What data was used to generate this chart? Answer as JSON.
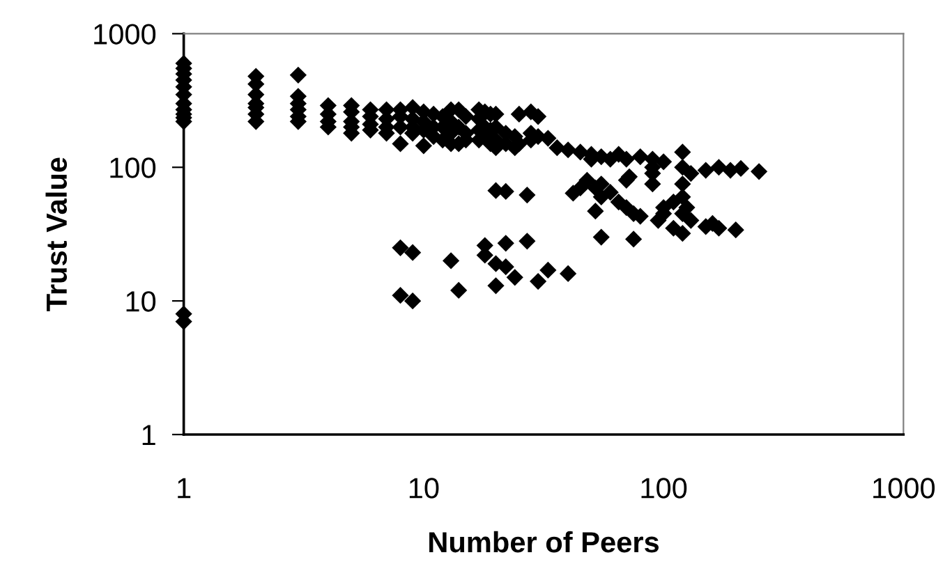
{
  "chart_data": {
    "type": "scatter",
    "xlabel": "Number of Peers",
    "ylabel": "Trust Value",
    "log": "xy",
    "xlim": [
      1,
      1000
    ],
    "ylim": [
      1,
      1000
    ],
    "xticks": [
      1,
      10,
      100,
      1000
    ],
    "yticks": [
      1,
      10,
      100,
      1000
    ],
    "grid": false,
    "marker": "diamond",
    "series": [
      {
        "color": "#000000",
        "x": [
          1,
          1,
          1,
          1,
          1,
          1,
          1,
          1,
          1,
          1,
          1,
          1,
          1,
          2,
          2,
          2,
          2,
          2,
          2,
          2,
          3,
          3,
          3,
          3,
          3,
          3,
          4,
          4,
          4,
          4,
          5,
          5,
          5,
          5,
          5,
          6,
          6,
          6,
          6,
          7,
          7,
          7,
          7,
          8,
          8,
          8,
          8,
          9,
          9,
          9,
          9,
          10,
          10,
          10,
          10,
          11,
          11,
          11,
          12,
          12,
          12,
          13,
          13,
          13,
          13,
          14,
          14,
          14,
          15,
          15,
          15,
          17,
          17,
          17,
          17,
          18,
          18,
          18,
          19,
          19,
          19,
          20,
          20,
          20,
          20,
          22,
          22,
          24,
          24,
          25,
          25,
          28,
          28,
          28,
          30,
          30,
          33,
          36,
          40,
          45,
          50,
          50,
          55,
          60,
          65,
          70,
          80,
          90,
          90,
          100,
          120,
          120,
          130,
          150,
          170,
          190,
          210,
          250,
          8,
          8,
          9,
          9,
          13,
          14,
          18,
          18,
          20,
          20,
          20,
          22,
          22,
          22,
          24,
          27,
          27,
          30,
          33,
          40,
          42,
          45,
          48,
          52,
          52,
          55,
          55,
          55,
          60,
          65,
          70,
          70,
          72,
          75,
          75,
          80,
          90,
          90,
          95,
          100,
          100,
          110,
          110,
          120,
          120,
          120,
          120,
          125,
          130,
          150,
          160,
          170,
          200
        ],
        "values": [
          600,
          550,
          500,
          450,
          400,
          350,
          300,
          270,
          250,
          235,
          220,
          8,
          7,
          480,
          420,
          350,
          300,
          280,
          250,
          220,
          490,
          340,
          300,
          270,
          240,
          220,
          290,
          250,
          220,
          200,
          290,
          260,
          220,
          200,
          180,
          270,
          240,
          210,
          190,
          270,
          230,
          200,
          180,
          270,
          240,
          200,
          150,
          280,
          230,
          200,
          180,
          260,
          220,
          190,
          145,
          250,
          200,
          170,
          240,
          200,
          160,
          270,
          220,
          180,
          150,
          270,
          200,
          150,
          240,
          180,
          160,
          270,
          230,
          190,
          160,
          260,
          200,
          170,
          250,
          190,
          150,
          250,
          200,
          160,
          140,
          180,
          150,
          170,
          140,
          250,
          150,
          260,
          180,
          160,
          240,
          170,
          165,
          140,
          135,
          130,
          125,
          115,
          120,
          115,
          125,
          115,
          120,
          115,
          100,
          110,
          130,
          100,
          90,
          95,
          100,
          95,
          98,
          93,
          25,
          11,
          23,
          10,
          20,
          12,
          26,
          22,
          67,
          19,
          13,
          66,
          27,
          18,
          15,
          62,
          28,
          14,
          17,
          16,
          64,
          70,
          80,
          47,
          70,
          30,
          75,
          60,
          65,
          55,
          80,
          50,
          85,
          45,
          29,
          43,
          90,
          75,
          40,
          50,
          45,
          55,
          35,
          60,
          45,
          32,
          75,
          50,
          40,
          36,
          38,
          35,
          34
        ]
      }
    ]
  }
}
